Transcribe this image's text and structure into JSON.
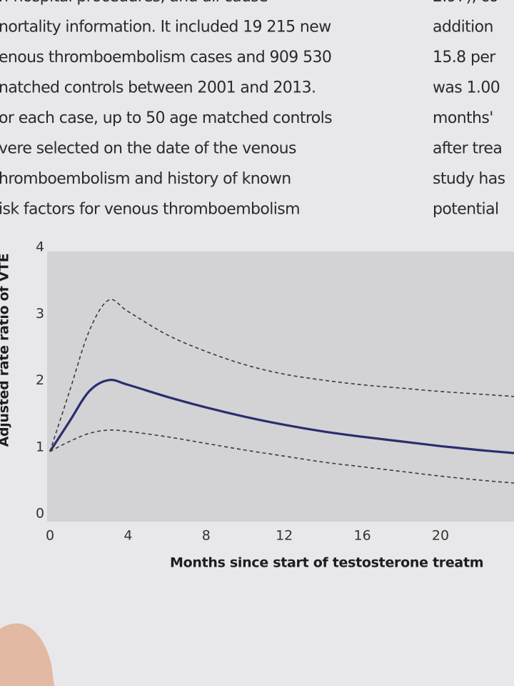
{
  "text_left": [
    "n-hospital procedures, and all cause",
    "nortality information. It included 19 215 new",
    "enous thromboembolism cases and 909 530",
    "natched controls between 2001 and 2013.",
    "or each case, up to 50 age matched controls",
    "vere selected on the date of the venous",
    "hromboembolism and history of known",
    "isk factors for venous thromboembolism"
  ],
  "text_right": [
    "2.97), co",
    "addition",
    "15.8 per",
    "was 1.00",
    "months'",
    "after trea",
    "study has",
    "potential"
  ],
  "chart_data": {
    "type": "line",
    "y_label": "Adjusted rate ratio of VTE",
    "x_label": "Months since start of testosterone treatm",
    "x": [
      0,
      1,
      2,
      3,
      4,
      6,
      8,
      10,
      12,
      14,
      16,
      18,
      20,
      22,
      24
    ],
    "series": [
      {
        "color": "#2b2d6e",
        "dashed": false,
        "values": [
          1.0,
          1.45,
          1.9,
          2.07,
          2.0,
          1.82,
          1.66,
          1.52,
          1.4,
          1.3,
          1.22,
          1.15,
          1.08,
          1.02,
          0.97
        ]
      },
      {
        "color": "#3a3a3e",
        "dashed": true,
        "values": [
          1.0,
          1.9,
          2.8,
          3.27,
          3.1,
          2.75,
          2.5,
          2.3,
          2.16,
          2.07,
          2.0,
          1.95,
          1.9,
          1.86,
          1.82
        ]
      },
      {
        "color": "#3a3a3e",
        "dashed": true,
        "values": [
          1.0,
          1.15,
          1.27,
          1.32,
          1.3,
          1.22,
          1.12,
          1.02,
          0.93,
          0.84,
          0.77,
          0.7,
          0.63,
          0.57,
          0.52
        ]
      }
    ],
    "xlim": [
      0,
      24
    ],
    "ylim": [
      0,
      4
    ],
    "xticks": [
      0,
      4,
      8,
      12,
      16,
      20
    ],
    "yticks": [
      0,
      1,
      2,
      3,
      4
    ]
  }
}
